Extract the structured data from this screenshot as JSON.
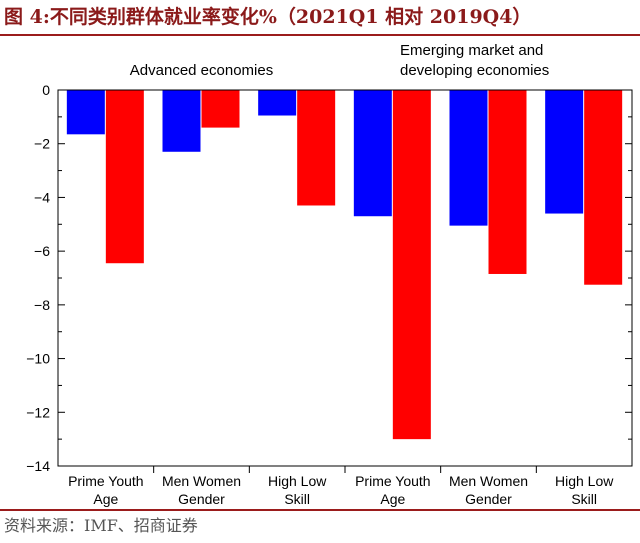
{
  "title": "图 4:不同类别群体就业率变化%（2021Q1 相对 2019Q4）",
  "source": "资料来源：IMF、招商证券",
  "chart_data": {
    "type": "bar",
    "groups": [
      {
        "label": "Advanced economies",
        "categories": [
          {
            "label": [
              "Prime Youth",
              "Age"
            ],
            "values": [
              -1.65,
              -6.45
            ]
          },
          {
            "label": [
              "Men Women",
              "Gender"
            ],
            "values": [
              -2.3,
              -1.4
            ]
          },
          {
            "label": [
              "High Low",
              "Skill"
            ],
            "values": [
              -0.95,
              -4.3
            ]
          }
        ]
      },
      {
        "label": [
          "Emerging market and",
          "developing economies"
        ],
        "categories": [
          {
            "label": [
              "Prime Youth",
              "Age"
            ],
            "values": [
              -4.7,
              -13.0
            ]
          },
          {
            "label": [
              "Men Women",
              "Gender"
            ],
            "values": [
              -5.05,
              -6.85
            ]
          },
          {
            "label": [
              "High Low",
              "Skill"
            ],
            "values": [
              -4.6,
              -7.25
            ]
          }
        ]
      }
    ],
    "series_colors": [
      "#0000ff",
      "#ff0000"
    ],
    "ylim": [
      -14,
      0
    ],
    "yticks": [
      0,
      -2,
      -4,
      -6,
      -8,
      -10,
      -12,
      -14
    ],
    "grid": false
  }
}
